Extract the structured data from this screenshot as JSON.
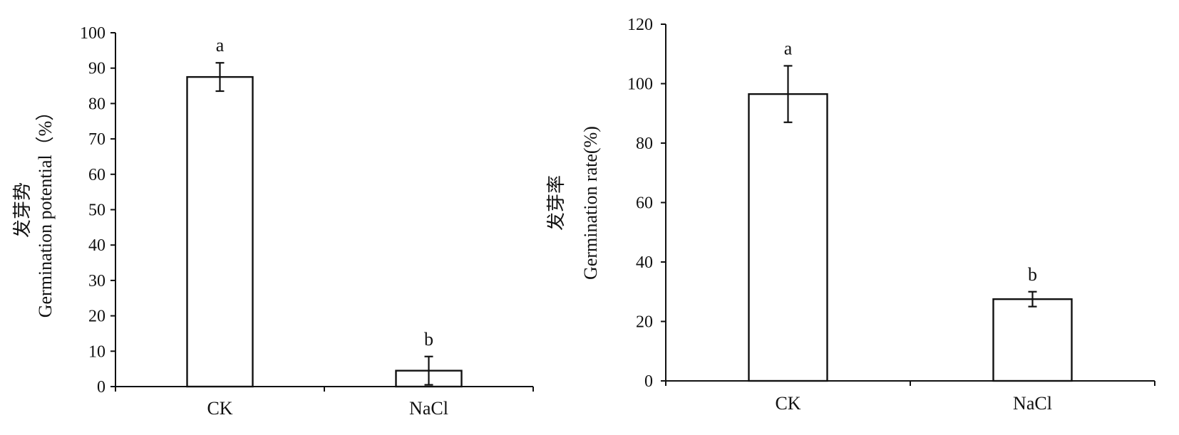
{
  "chart_data": [
    {
      "type": "bar",
      "categories": [
        "CK",
        "NaCl"
      ],
      "values": [
        87.5,
        4.5
      ],
      "error": [
        4.0,
        4.0
      ],
      "significance": [
        "a",
        "b"
      ],
      "ylabel_cn": "发芽势",
      "ylabel": "Germination potential（%）",
      "ylim": [
        0,
        100
      ],
      "yticks": [
        0,
        10,
        20,
        30,
        40,
        50,
        60,
        70,
        80,
        90,
        100
      ],
      "grid": false
    },
    {
      "type": "bar",
      "categories": [
        "CK",
        "NaCl"
      ],
      "values": [
        96.5,
        27.5
      ],
      "error": [
        9.5,
        2.5
      ],
      "significance": [
        "a",
        "b"
      ],
      "ylabel_cn": "发芽率",
      "ylabel": "Germination rate(%)",
      "ylim": [
        0,
        120
      ],
      "yticks": [
        0,
        20,
        40,
        60,
        80,
        100,
        120
      ],
      "grid": false
    }
  ]
}
